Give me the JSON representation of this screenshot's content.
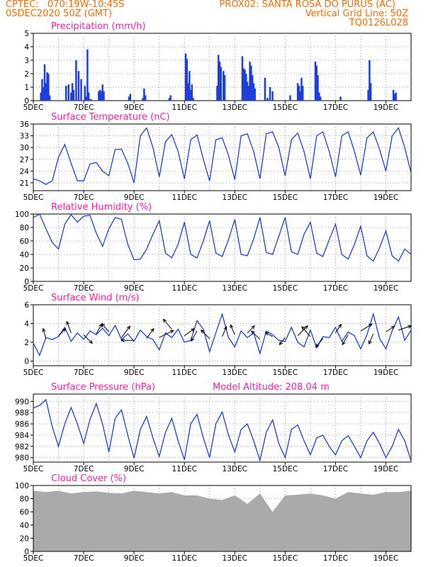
{
  "header": {
    "line1_left": "CPTEC:   070:19W-10:45S",
    "line1_right": "PROX02: SANTA ROSA DO PURUS (AC)",
    "line2_left": "05DEC2020 50Z (GMT)",
    "line2_right": "Vertical Grid Line: 50Z",
    "line3_right": "TQ0126L028",
    "color": "#ff6a00"
  },
  "colors": {
    "title": "#ff1aa8",
    "series": "#1f3fdc",
    "cloud": "#aaaaaa",
    "grid": "#999999",
    "arrow": "#000000"
  },
  "chart_data": [
    {
      "type": "bar",
      "title": "Precipitation (mm/h)",
      "ylim": [
        0,
        5
      ],
      "yticks": [
        "0",
        "1",
        "2",
        "3",
        "4",
        "5"
      ],
      "xticks": [
        "5DEC",
        "7DEC",
        "9DEC",
        "11DEC",
        "13DEC",
        "15DEC",
        "17DEC",
        "19DEC"
      ],
      "grid": true,
      "x_days": [
        0.3,
        0.35,
        0.4,
        0.45,
        0.5,
        0.55,
        0.6,
        0.65,
        1.3,
        1.4,
        1.5,
        1.55,
        1.6,
        1.7,
        1.8,
        1.9,
        2.05,
        2.1,
        2.15,
        2.2,
        2.25,
        2.3,
        2.6,
        2.65,
        2.7,
        2.75,
        2.8,
        3.8,
        3.85,
        4.35,
        4.4,
        4.45,
        5.4,
        5.45,
        6.05,
        6.1,
        6.15,
        6.2,
        6.25,
        6.3,
        6.35,
        7.3,
        7.35,
        7.4,
        7.45,
        7.55,
        7.6,
        8.3,
        8.35,
        8.4,
        8.45,
        8.5,
        8.55,
        8.6,
        8.65,
        8.7,
        8.75,
        8.8,
        9.2,
        9.3,
        9.4,
        9.5,
        10.2,
        10.5,
        10.55,
        10.6,
        10.65,
        10.7,
        11.2,
        11.25,
        11.3,
        11.35,
        11.4,
        12.2,
        13.3,
        13.35,
        13.4,
        14.3,
        14.35,
        14.4,
        16.3,
        16.35,
        16.4,
        17.3,
        17.35
      ],
      "values": [
        0.6,
        1.6,
        1.0,
        2.7,
        1.3,
        2.1,
        2.0,
        0.4,
        1.1,
        1.2,
        0.6,
        1.3,
        0.8,
        3.0,
        2.2,
        1.6,
        1.1,
        0.3,
        3.8,
        0.6,
        0.1,
        0.1,
        0.7,
        0.8,
        0.7,
        1.2,
        0.7,
        0.3,
        0.5,
        0.2,
        0.9,
        0.4,
        0.2,
        0.4,
        3.5,
        3.1,
        1.3,
        2.2,
        0.8,
        1.2,
        0.2,
        1.1,
        3.4,
        2.9,
        2.5,
        2.2,
        1.9,
        3.3,
        2.4,
        2.3,
        2.0,
        1.4,
        1.1,
        2.9,
        2.6,
        1.9,
        1.3,
        0.9,
        1.7,
        0.2,
        1.0,
        0.7,
        0.4,
        1.3,
        1.1,
        0.7,
        1.7,
        1.1,
        2.9,
        2.6,
        1.9,
        0.6,
        0.3,
        0.3,
        0.8,
        3.0,
        1.3,
        0.8,
        0.5,
        0.6,
        0.8,
        0.7,
        1.0,
        1.3,
        1.1
      ]
    },
    {
      "type": "line",
      "title": "Surface Temperature (nC)",
      "ylim": [
        19,
        36
      ],
      "yticks": [
        "21",
        "24",
        "27",
        "30",
        "33",
        "36"
      ],
      "xticks": [
        "5DEC",
        "7DEC",
        "9DEC",
        "11DEC",
        "13DEC",
        "15DEC",
        "17DEC",
        "19DEC"
      ],
      "grid": true,
      "x_days": [
        0,
        0.25,
        0.5,
        0.75,
        1.0,
        1.25,
        1.5,
        1.75,
        2.0,
        2.25,
        2.5,
        2.75,
        3.0,
        3.25,
        3.5,
        3.75,
        4.0,
        4.25,
        4.5,
        4.75,
        5.0,
        5.25,
        5.5,
        5.75,
        6.0,
        6.25,
        6.5,
        6.75,
        7.0,
        7.25,
        7.5,
        7.75,
        8.0,
        8.25,
        8.5,
        8.75,
        9.0,
        9.25,
        9.5,
        9.75,
        10.0,
        10.25,
        10.5,
        10.75,
        11.0,
        11.25,
        11.5,
        11.75,
        12.0,
        12.25,
        12.5,
        12.75,
        13.0,
        13.25,
        13.5,
        13.75,
        14.0,
        14.25,
        14.5,
        14.75,
        15.0
      ],
      "values": [
        22,
        21.5,
        20.6,
        21.5,
        27.5,
        30.8,
        26,
        21.5,
        21.5,
        25.8,
        26.2,
        24,
        22.8,
        29.5,
        29.6,
        26,
        21,
        33,
        35,
        30,
        22.5,
        31.5,
        33.3,
        29,
        22,
        32,
        33.2,
        27,
        21.5,
        32,
        32.5,
        28,
        21.8,
        33,
        33.5,
        29,
        22,
        33.5,
        34,
        30,
        22.8,
        32,
        33.7,
        29,
        22,
        33,
        34,
        29,
        22.5,
        33,
        34,
        29,
        23,
        32.5,
        34,
        29.5,
        24,
        33,
        35,
        30,
        23.5
      ]
    },
    {
      "type": "line",
      "title": "Relative Humidity (%)",
      "ylim": [
        0,
        100
      ],
      "yticks": [
        "0",
        "20",
        "40",
        "60",
        "80",
        "100"
      ],
      "xticks": [
        "5DEC",
        "7DEC",
        "9DEC",
        "11DEC",
        "13DEC",
        "15DEC",
        "17DEC",
        "19DEC"
      ],
      "grid": true,
      "x_days": [
        0,
        0.25,
        0.5,
        0.75,
        1.0,
        1.25,
        1.5,
        1.75,
        2.0,
        2.25,
        2.5,
        2.75,
        3.0,
        3.25,
        3.5,
        3.75,
        4.0,
        4.25,
        4.5,
        4.75,
        5.0,
        5.25,
        5.5,
        5.75,
        6.0,
        6.25,
        6.5,
        6.75,
        7.0,
        7.25,
        7.5,
        7.75,
        8.0,
        8.25,
        8.5,
        8.75,
        9.0,
        9.25,
        9.5,
        9.75,
        10.0,
        10.25,
        10.5,
        10.75,
        11.0,
        11.25,
        11.5,
        11.75,
        12.0,
        12.25,
        12.5,
        12.75,
        13.0,
        13.25,
        13.5,
        13.75,
        14.0,
        14.25,
        14.5,
        14.75,
        15.0
      ],
      "values": [
        95,
        100,
        78,
        58,
        48,
        85,
        99,
        88,
        97,
        98,
        72,
        52,
        78,
        95,
        92,
        55,
        32,
        33,
        48,
        70,
        90,
        42,
        35,
        55,
        88,
        40,
        35,
        60,
        90,
        42,
        37,
        62,
        92,
        40,
        38,
        63,
        95,
        43,
        40,
        67,
        95,
        44,
        40,
        70,
        88,
        42,
        37,
        62,
        85,
        40,
        33,
        55,
        82,
        38,
        30,
        50,
        75,
        38,
        30,
        48,
        40
      ]
    },
    {
      "type": "line",
      "title": "Surface Wind (m/s)",
      "ylim": [
        -0.5,
        6
      ],
      "yticks": [
        "0",
        "2",
        "4",
        "6"
      ],
      "xticks": [
        "5DEC",
        "7DEC",
        "9DEC",
        "11DEC",
        "13DEC",
        "15DEC",
        "17DEC",
        "19DEC"
      ],
      "grid": true,
      "x_days": [
        0,
        0.25,
        0.5,
        0.75,
        1.0,
        1.25,
        1.5,
        1.75,
        2.0,
        2.25,
        2.5,
        2.75,
        3.0,
        3.25,
        3.5,
        3.75,
        4.0,
        4.25,
        4.5,
        4.75,
        5.0,
        5.25,
        5.5,
        5.75,
        6.0,
        6.25,
        6.5,
        6.75,
        7.0,
        7.25,
        7.5,
        7.75,
        8.0,
        8.25,
        8.5,
        8.75,
        9.0,
        9.25,
        9.5,
        9.75,
        10.0,
        10.25,
        10.5,
        10.75,
        11.0,
        11.25,
        11.5,
        11.75,
        12.0,
        12.25,
        12.5,
        12.75,
        13.0,
        13.25,
        13.5,
        13.75,
        14.0,
        14.25,
        14.5,
        14.75,
        15.0
      ],
      "values": [
        1.9,
        0.6,
        2.5,
        2.3,
        2.6,
        3.6,
        2.1,
        3.0,
        2.3,
        3.2,
        2.8,
        3.5,
        2.7,
        3.8,
        2.3,
        2.9,
        2.1,
        3.3,
        2.6,
        2.3,
        1.2,
        3.0,
        2.5,
        3.4,
        2.0,
        2.2,
        4.3,
        3.4,
        1.0,
        3.0,
        5.0,
        2.5,
        1.5,
        3.2,
        2.5,
        3.0,
        0.8,
        3.2,
        2.8,
        2.2,
        2.1,
        3.6,
        2.0,
        1.5,
        3.3,
        1.4,
        2.6,
        2.5,
        3.6,
        2.1,
        3.1,
        2.7,
        1.3,
        2.8,
        5.0,
        2.4,
        1.3,
        3.2,
        4.7,
        2.2,
        3.3
      ],
      "vector_days": [
        0.5,
        1.0,
        1.5,
        2.0,
        2.5,
        3.0,
        3.5,
        4.0,
        4.5,
        5.0,
        5.5,
        6.0,
        6.5,
        7.0,
        7.5,
        8.0,
        8.5,
        9.0,
        9.5,
        10.0,
        10.5,
        11.0,
        11.5,
        12.0,
        12.5,
        13.0,
        13.5,
        14.0,
        14.5
      ],
      "vector_speed": [
        2.4,
        2.7,
        3.0,
        2.8,
        2.9,
        3.1,
        2.5,
        2.2,
        2.4,
        2.5,
        3.4,
        2.7,
        3.2,
        2.4,
        2.6,
        2.8,
        3.0,
        2.3,
        2.6,
        2.5,
        2.7,
        2.6,
        2.4,
        3.0,
        2.8,
        3.2,
        2.9,
        3.1,
        3.3
      ],
      "vector_dx": [
        -4,
        10,
        -6,
        12,
        8,
        -10,
        12,
        -18,
        10,
        20,
        -12,
        14,
        -8,
        -12,
        6,
        -6,
        10,
        -12,
        -10,
        -8,
        14,
        -12,
        -10,
        8,
        -8,
        16,
        -6,
        12,
        18
      ],
      "vector_dy": [
        -14,
        -10,
        -16,
        12,
        -14,
        -12,
        -16,
        0,
        -14,
        -10,
        -14,
        -10,
        14,
        -12,
        -14,
        -14,
        -10,
        -12,
        -6,
        10,
        -14,
        -14,
        12,
        -12,
        14,
        -10,
        14,
        -8,
        -6
      ]
    },
    {
      "type": "line",
      "title": "Surface Pressure (hPa)",
      "annotation": "Model Altitude: 208.04  m",
      "ylim": [
        979.2,
        991.3
      ],
      "yticks": [
        "980",
        "982",
        "984",
        "986",
        "988",
        "990"
      ],
      "xticks": [
        "5DEC",
        "7DEC",
        "9DEC",
        "11DEC",
        "13DEC",
        "15DEC",
        "17DEC",
        "19DEC"
      ],
      "grid": true,
      "x_days": [
        0,
        0.25,
        0.5,
        0.75,
        1.0,
        1.25,
        1.5,
        1.75,
        2.0,
        2.25,
        2.5,
        2.75,
        3.0,
        3.25,
        3.5,
        3.75,
        4.0,
        4.25,
        4.5,
        4.75,
        5.0,
        5.25,
        5.5,
        5.75,
        6.0,
        6.25,
        6.5,
        6.75,
        7.0,
        7.25,
        7.5,
        7.75,
        8.0,
        8.25,
        8.5,
        8.75,
        9.0,
        9.25,
        9.5,
        9.75,
        10.0,
        10.25,
        10.5,
        10.75,
        11.0,
        11.25,
        11.5,
        11.75,
        12.0,
        12.25,
        12.5,
        12.75,
        13.0,
        13.25,
        13.5,
        13.75,
        14.0,
        14.25,
        14.5,
        14.75,
        15.0
      ],
      "values": [
        988.8,
        989.3,
        990.3,
        985.5,
        982.0,
        986.0,
        988.9,
        986.0,
        982.5,
        986.8,
        989.6,
        986.0,
        981.0,
        987.0,
        988.5,
        984.0,
        979.9,
        985.0,
        987.3,
        983.5,
        980.2,
        984.5,
        987.0,
        983.0,
        979.6,
        986.0,
        987.7,
        983.5,
        980.0,
        986.0,
        988.1,
        984.0,
        981.0,
        985.0,
        986.0,
        983.0,
        979.5,
        984.5,
        986.7,
        982.5,
        980.0,
        985.0,
        985.8,
        983.0,
        980.5,
        983.5,
        984.0,
        982.0,
        980.5,
        983.0,
        983.9,
        982.0,
        980.0,
        983.0,
        984.5,
        982.5,
        980.0,
        982.0,
        985.0,
        983.0,
        979.4
      ]
    },
    {
      "type": "area",
      "title": "Cloud Cover (%)",
      "ylim": [
        0,
        100
      ],
      "yticks": [
        "0",
        "20",
        "40",
        "60",
        "80",
        "100"
      ],
      "xticks": [
        "5DEC",
        "7DEC",
        "9DEC",
        "11DEC",
        "13DEC",
        "15DEC",
        "17DEC",
        "19DEC"
      ],
      "grid": true,
      "x_days": [
        0,
        0.5,
        1.0,
        1.5,
        2.0,
        2.5,
        3.0,
        3.5,
        4.0,
        4.5,
        5.0,
        5.5,
        6.0,
        6.5,
        7.0,
        7.5,
        8.0,
        8.5,
        9.0,
        9.5,
        10.0,
        10.5,
        11.0,
        11.5,
        12.0,
        12.5,
        13.0,
        13.5,
        14.0,
        14.5,
        15.0
      ],
      "values": [
        92,
        90,
        92,
        88,
        90,
        91,
        89,
        88,
        92,
        90,
        88,
        90,
        85,
        85,
        80,
        78,
        85,
        72,
        88,
        60,
        85,
        86,
        88,
        85,
        80,
        90,
        88,
        86,
        90,
        90,
        92
      ]
    }
  ]
}
